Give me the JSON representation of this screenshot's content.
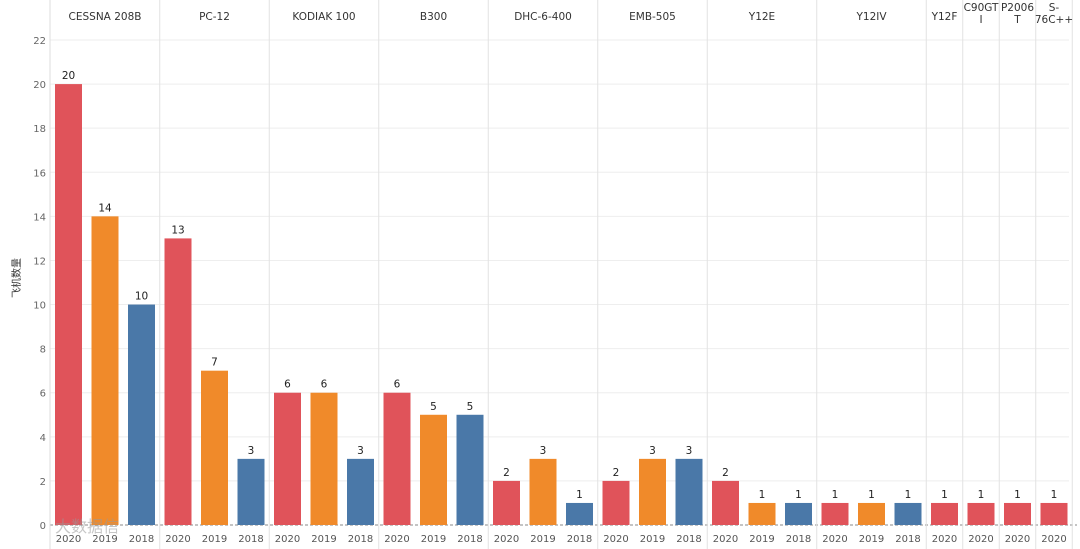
{
  "chart_data": {
    "type": "bar",
    "title": "",
    "ylabel": "飞机数量",
    "xlabel": "",
    "ylim": [
      0,
      22
    ],
    "yticks": [
      0,
      2,
      4,
      6,
      8,
      10,
      12,
      14,
      16,
      18,
      20,
      22
    ],
    "grid": true,
    "legend": "none",
    "series_colors": {
      "2020": "#e0535a",
      "2019": "#f08a2a",
      "2018": "#4a78a8"
    },
    "groups": [
      {
        "name": "CESSNA 208B",
        "bars": [
          {
            "year": "2020",
            "value": 20
          },
          {
            "year": "2019",
            "value": 14
          },
          {
            "year": "2018",
            "value": 10
          }
        ]
      },
      {
        "name": "PC-12",
        "bars": [
          {
            "year": "2020",
            "value": 13
          },
          {
            "year": "2019",
            "value": 7
          },
          {
            "year": "2018",
            "value": 3
          }
        ]
      },
      {
        "name": "KODIAK 100",
        "bars": [
          {
            "year": "2020",
            "value": 6
          },
          {
            "year": "2019",
            "value": 6
          },
          {
            "year": "2018",
            "value": 3
          }
        ]
      },
      {
        "name": "B300",
        "bars": [
          {
            "year": "2020",
            "value": 6
          },
          {
            "year": "2019",
            "value": 5
          },
          {
            "year": "2018",
            "value": 5
          }
        ]
      },
      {
        "name": "DHC-6-400",
        "bars": [
          {
            "year": "2020",
            "value": 2
          },
          {
            "year": "2019",
            "value": 3
          },
          {
            "year": "2018",
            "value": 1
          }
        ]
      },
      {
        "name": "EMB-505",
        "bars": [
          {
            "year": "2020",
            "value": 2
          },
          {
            "year": "2019",
            "value": 3
          },
          {
            "year": "2018",
            "value": 3
          }
        ]
      },
      {
        "name": "Y12E",
        "bars": [
          {
            "year": "2020",
            "value": 2
          },
          {
            "year": "2019",
            "value": 1
          },
          {
            "year": "2018",
            "value": 1
          }
        ]
      },
      {
        "name": "Y12IV",
        "bars": [
          {
            "year": "2020",
            "value": 1
          },
          {
            "year": "2019",
            "value": 1
          },
          {
            "year": "2018",
            "value": 1
          }
        ]
      },
      {
        "name": "Y12F",
        "bars": [
          {
            "year": "2020",
            "value": 1
          }
        ]
      },
      {
        "name": "C90GTI",
        "bars": [
          {
            "year": "2020",
            "value": 1
          }
        ]
      },
      {
        "name": "P2006T",
        "bars": [
          {
            "year": "2020",
            "value": 1
          }
        ]
      },
      {
        "name": "S-76C++",
        "bars": [
          {
            "year": "2020",
            "value": 1
          }
        ]
      }
    ]
  },
  "watermark": "大数据信"
}
